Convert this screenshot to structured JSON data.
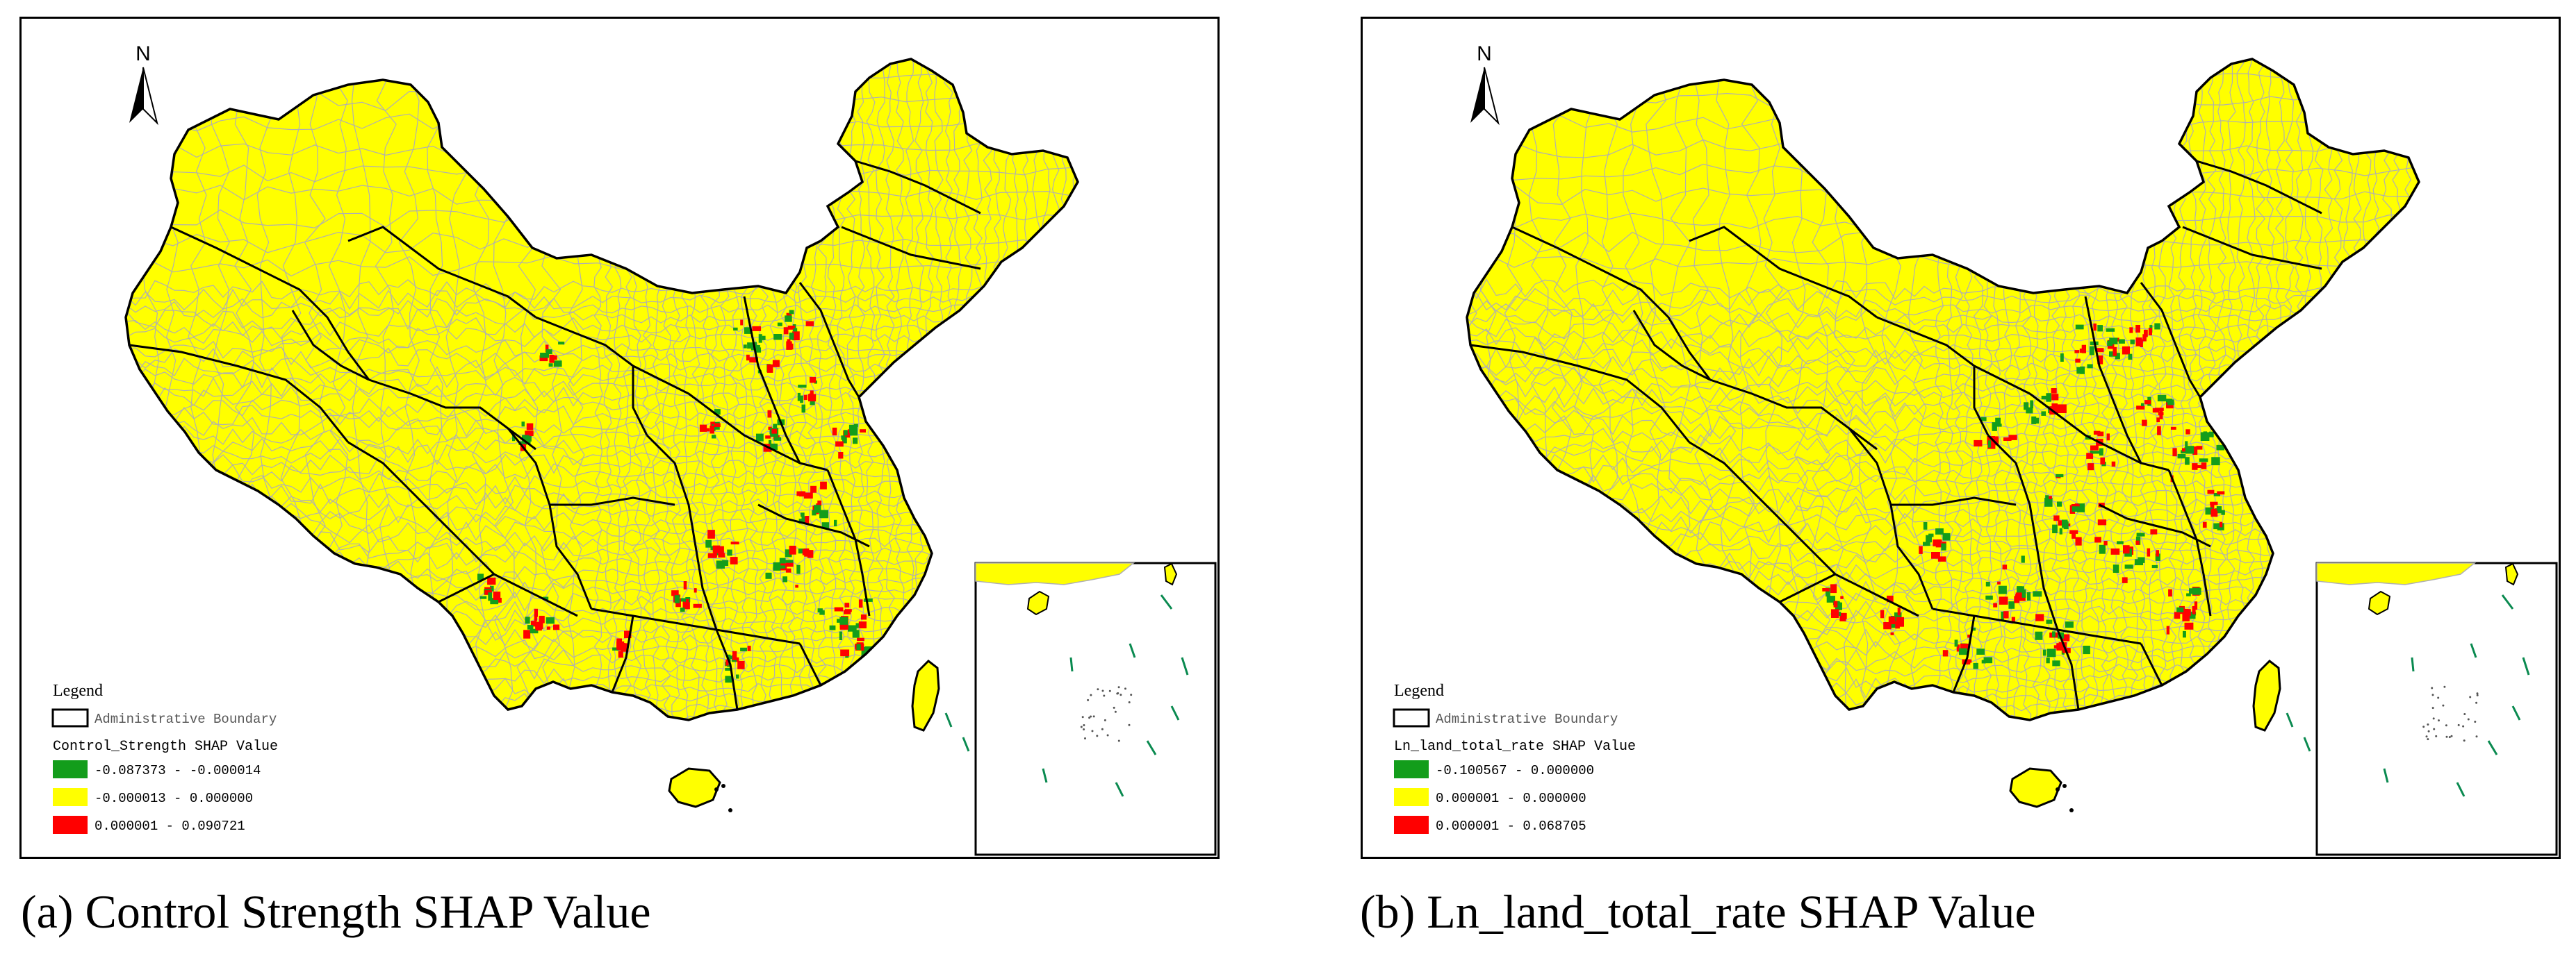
{
  "colors": {
    "land": "#ffff00",
    "county_border": "#b0b0b0",
    "admin_border": "#000000",
    "negative": "#139d1b",
    "neutral": "#ffff00",
    "positive": "#ff0000",
    "island_stroke": "#0a8a50"
  },
  "north_arrow": {
    "label": "N",
    "icon": "north-arrow-icon"
  },
  "panels": [
    {
      "caption": "(a) Control Strength SHAP Value",
      "legend": {
        "title": "Legend",
        "boundary_label": "Administrative Boundary",
        "field_title": "Control_Strength SHAP Value",
        "classes": [
          {
            "label": "-0.087373 - -0.000014",
            "color": "#139d1b"
          },
          {
            "label": "-0.000013 - 0.000000",
            "color": "#ffff00"
          },
          {
            "label": "0.000001 - 0.090721",
            "color": "#ff0000"
          }
        ]
      }
    },
    {
      "caption": "(b) Ln_land_total_rate SHAP Value",
      "legend": {
        "title": "Legend",
        "boundary_label": "Administrative Boundary",
        "field_title": "Ln_land_total_rate SHAP Value",
        "classes": [
          {
            "label": "-0.100567 - 0.000000",
            "color": "#139d1b"
          },
          {
            "label": "0.000001 - 0.000000",
            "color": "#ffff00"
          },
          {
            "label": "0.000001 - 0.068705",
            "color": "#ff0000"
          }
        ]
      }
    }
  ]
}
